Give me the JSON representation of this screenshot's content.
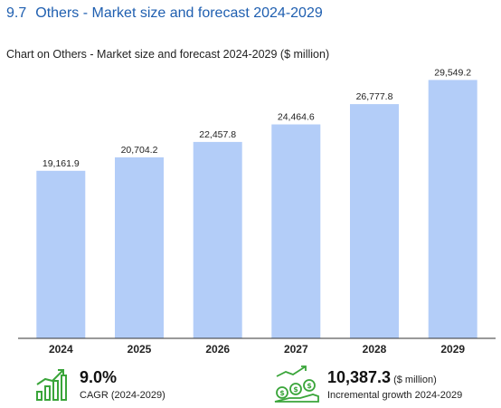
{
  "heading": {
    "number": "9.7",
    "title": "Others - Market size and forecast 2024-2029"
  },
  "caption": "Chart on Others - Market size and forecast 2024-2029 ($ million)",
  "chart_data": {
    "type": "bar",
    "categories": [
      "2024",
      "2025",
      "2026",
      "2027",
      "2028",
      "2029"
    ],
    "values": [
      19161.9,
      20704.2,
      22457.8,
      24464.6,
      26777.8,
      29549.2
    ],
    "value_labels": [
      "19,161.9",
      "20,704.2",
      "22,457.8",
      "24,464.6",
      "26,777.8",
      "29,549.2"
    ],
    "bar_color": "#b3cdf8",
    "axis_color": "#333333",
    "ylim": [
      0,
      30000
    ],
    "grid": false,
    "title": "",
    "xlabel": "",
    "ylabel": ""
  },
  "stats": {
    "cagr": {
      "value": "9.0%",
      "description": "CAGR (2024-2029)",
      "icon": "growth-bars-icon",
      "icon_color": "#3aa53a"
    },
    "incremental": {
      "value": "10,387.3",
      "unit": "($ million)",
      "description": "Incremental growth 2024-2029",
      "icon": "money-growth-icon",
      "icon_color": "#3aa53a"
    }
  }
}
